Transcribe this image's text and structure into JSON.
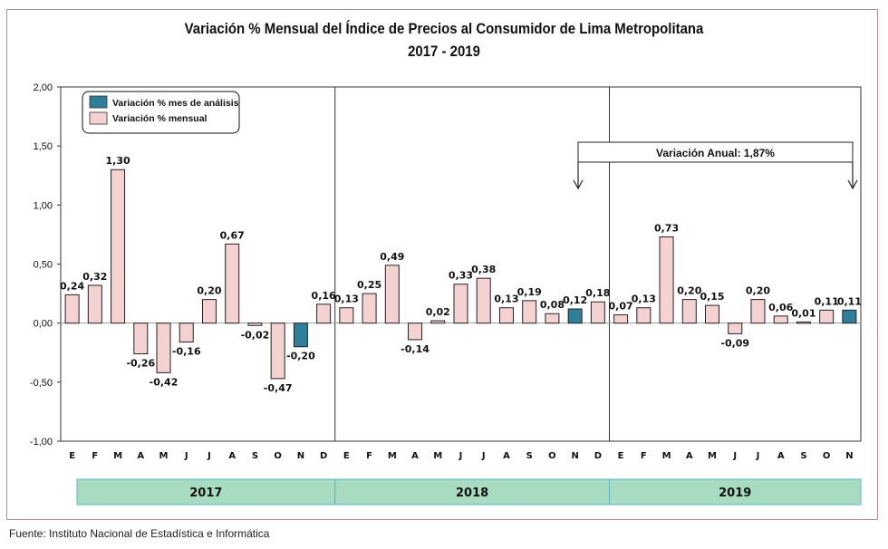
{
  "chart_data": {
    "type": "bar",
    "title": "Variación % Mensual del Índice de Precios al Consumidor de Lima Metropolitana",
    "subtitle": "2017 - 2019",
    "xlabel": "",
    "ylabel": "",
    "ylim": [
      -1.0,
      2.0
    ],
    "yticks": [
      "2,00",
      "1,50",
      "1,00",
      "0,50",
      "0,00",
      "-0,50",
      "-1,00"
    ],
    "ytick_values": [
      2.0,
      1.5,
      1.0,
      0.5,
      0.0,
      -0.5,
      -1.0
    ],
    "grid": false,
    "legend_position": "top-left",
    "legend": [
      {
        "name": "Variación % mes de análisis",
        "color": "#2e7f9a"
      },
      {
        "name": "Variación % mensual",
        "color": "#f4d2d2"
      }
    ],
    "categories": [
      "E",
      "F",
      "M",
      "A",
      "M",
      "J",
      "J",
      "A",
      "S",
      "O",
      "N",
      "D",
      "E",
      "F",
      "M",
      "A",
      "M",
      "J",
      "J",
      "A",
      "S",
      "O",
      "N",
      "D",
      "E",
      "F",
      "M",
      "A",
      "M",
      "J",
      "J",
      "A",
      "S",
      "O",
      "N"
    ],
    "values": [
      0.24,
      0.32,
      1.3,
      -0.26,
      -0.42,
      -0.16,
      0.2,
      0.67,
      -0.02,
      -0.47,
      -0.2,
      0.16,
      0.13,
      0.25,
      0.49,
      -0.14,
      0.02,
      0.33,
      0.38,
      0.13,
      0.19,
      0.08,
      0.12,
      0.18,
      0.07,
      0.13,
      0.73,
      0.2,
      0.15,
      -0.09,
      0.2,
      0.06,
      0.01,
      0.11,
      0.11
    ],
    "value_labels": [
      "0,24",
      "0,32",
      "1,30",
      "-0,26",
      "-0,42",
      "-0,16",
      "0,20",
      "0,67",
      "-0,02",
      "-0,47",
      "-0,20",
      "0,16",
      "0,13",
      "0,25",
      "0,49",
      "-0,14",
      "0,02",
      "0,33",
      "0,38",
      "0,13",
      "0,19",
      "0,08",
      "0,12",
      "0,18",
      "0,07",
      "0,13",
      "0,73",
      "0,20",
      "0,15",
      "-0,09",
      "0,20",
      "0,06",
      "0,01",
      "0,11",
      "0,11"
    ],
    "highlighted_indices": [
      10,
      22,
      34
    ],
    "years": [
      {
        "label": "2017",
        "months": 12
      },
      {
        "label": "2018",
        "months": 12
      },
      {
        "label": "2019",
        "months": 11
      }
    ],
    "annotation": {
      "text": "Variación Anual: 1,87%",
      "from_index": 23,
      "to_index": 34
    },
    "colors": {
      "highlight": "#2e7f9a",
      "normal": "#f4d2d2",
      "year_band": "#a8dcc0",
      "year_band_border": "#5bb6d0"
    }
  },
  "footer": {
    "source": "Fuente: Instituto Nacional de Estadística e Informática"
  }
}
